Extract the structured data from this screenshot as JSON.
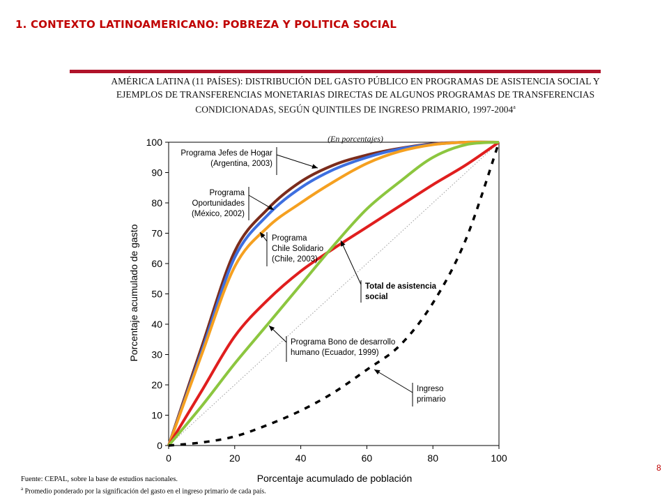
{
  "slide": {
    "title": "1. CONTEXTO LATINOAMERICANO: POBREZA Y POLITICA SOCIAL",
    "page_number": "8",
    "source": "Fuente: CEPAL, sobre la base de estudios nacionales.",
    "note_marker": "a",
    "note_text": " Promedio ponderado por la significación del gasto en el ingreso primario de cada país."
  },
  "chart_data": {
    "type": "line",
    "title": "AMÉRICA LATINA (11 PAÍSES): DISTRIBUCIÓN DEL GASTO PÚBLICO EN PROGRAMAS DE ASISTENCIA SOCIAL Y EJEMPLOS DE TRANSFERENCIAS MONETARIAS DIRECTAS DE ALGUNOS PROGRAMAS DE TRANSFERENCIAS CONDICIONADAS, SEGÚN QUINTILES DE INGRESO PRIMARIO, 1997-2004",
    "title_marker": "a",
    "subtitle": "(En porcentajes)",
    "xlabel": "Porcentaje acumulado de población",
    "ylabel": "Porcentaje acumulado de gasto",
    "xlim": [
      0,
      100
    ],
    "ylim": [
      0,
      100
    ],
    "xticks": [
      0,
      20,
      40,
      60,
      80,
      100
    ],
    "yticks": [
      0,
      10,
      20,
      30,
      40,
      50,
      60,
      70,
      80,
      90,
      100
    ],
    "x": [
      0,
      10,
      20,
      30,
      40,
      50,
      60,
      70,
      80,
      90,
      100
    ],
    "series": [
      {
        "name": "Programa Jefes de Hogar (Argentina, 2003)",
        "color": "#7b2c1c",
        "values": [
          0,
          32.5,
          64,
          78,
          87,
          92.5,
          95.8,
          98,
          99.5,
          100,
          100
        ]
      },
      {
        "name": "Programa Oportunidades (México, 2002)",
        "color": "#3d6fe0",
        "values": [
          0,
          31,
          62,
          76,
          85,
          91,
          95,
          97.8,
          99.3,
          100,
          100
        ]
      },
      {
        "name": "Programa Chile Solidario (Chile, 2003)",
        "color": "#f5a020",
        "values": [
          0,
          30,
          59,
          72,
          80,
          87,
          93,
          97,
          99.2,
          100,
          100
        ]
      },
      {
        "name": "Total de asistencia social",
        "color": "#e01e1e",
        "values": [
          0,
          18,
          36,
          48,
          57.5,
          65,
          72,
          79,
          86,
          92.5,
          100
        ]
      },
      {
        "name": "Programa Bono de desarrollo humano (Ecuador, 1999)",
        "color": "#8cc63f",
        "values": [
          0,
          13,
          27,
          40,
          53,
          66,
          78,
          87,
          95,
          99.2,
          100
        ]
      },
      {
        "name": "Ingreso primario",
        "color": "#000000",
        "dashed": true,
        "values": [
          0,
          1,
          3,
          6.8,
          11.5,
          17.5,
          25,
          33,
          47,
          68,
          100
        ]
      }
    ],
    "annotations": [
      {
        "lines": [
          "Programa Jefes de Hogar",
          "(Argentina, 2003)"
        ],
        "series": 0
      },
      {
        "lines": [
          "Programa",
          "Oportunidades",
          "(México, 2002)"
        ],
        "series": 1
      },
      {
        "lines": [
          "Programa",
          "Chile Solidario",
          "(Chile, 2003)"
        ],
        "series": 2
      },
      {
        "lines": [
          "Total de asistencia",
          "social"
        ],
        "series": 3
      },
      {
        "lines": [
          "Programa Bono de desarrollo",
          "humano (Ecuador, 1999)"
        ],
        "series": 4
      },
      {
        "lines": [
          "Ingreso",
          "primario"
        ],
        "series": 5
      }
    ],
    "equality_line": true,
    "grid": false
  }
}
